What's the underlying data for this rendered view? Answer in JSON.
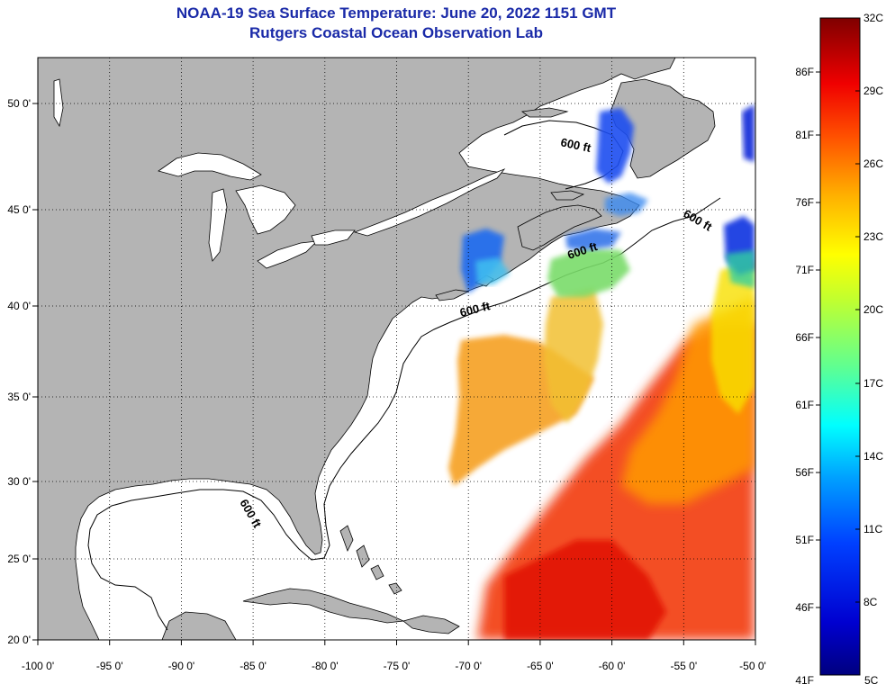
{
  "title": {
    "line1": "NOAA-19 Sea Surface Temperature:  June 20, 2022 1151 GMT",
    "line2": "Rutgers Coastal Ocean Observation Lab"
  },
  "map": {
    "lon_range": [
      -100,
      -50
    ],
    "lat_range": [
      20,
      52.5
    ],
    "x_tick_labels": [
      "-100 0'",
      "-95 0'",
      "-90 0'",
      "-85 0'",
      "-80 0'",
      "-75 0'",
      "-70 0'",
      "-65 0'",
      "-60 0'",
      "-55 0'",
      "-50 0'"
    ],
    "y_tick_labels": [
      "20 0'",
      "25 0'",
      "30 0'",
      "35 0'",
      "40 0'",
      "45 0'",
      "50 0'"
    ],
    "contour_label": "600 ft",
    "colors": {
      "land": "#b4b4b4",
      "ocean": "#ffffff",
      "grid": "#000000"
    }
  },
  "colorbar": {
    "celsius_labels": [
      "32C",
      "29C",
      "26C",
      "23C",
      "20C",
      "17C",
      "14C",
      "11C",
      "8C",
      "5C"
    ],
    "fahrenheit_labels": [
      "86F",
      "81F",
      "76F",
      "71F",
      "66F",
      "61F",
      "56F",
      "51F",
      "46F",
      "41F"
    ],
    "celsius_range": [
      5,
      32
    ],
    "colors": [
      "#00007f",
      "#0000d0",
      "#0040ff",
      "#00a0ff",
      "#00ffff",
      "#60ff90",
      "#c0ff30",
      "#ffff00",
      "#ffb000",
      "#ff5000",
      "#f00000",
      "#7f0000"
    ]
  }
}
